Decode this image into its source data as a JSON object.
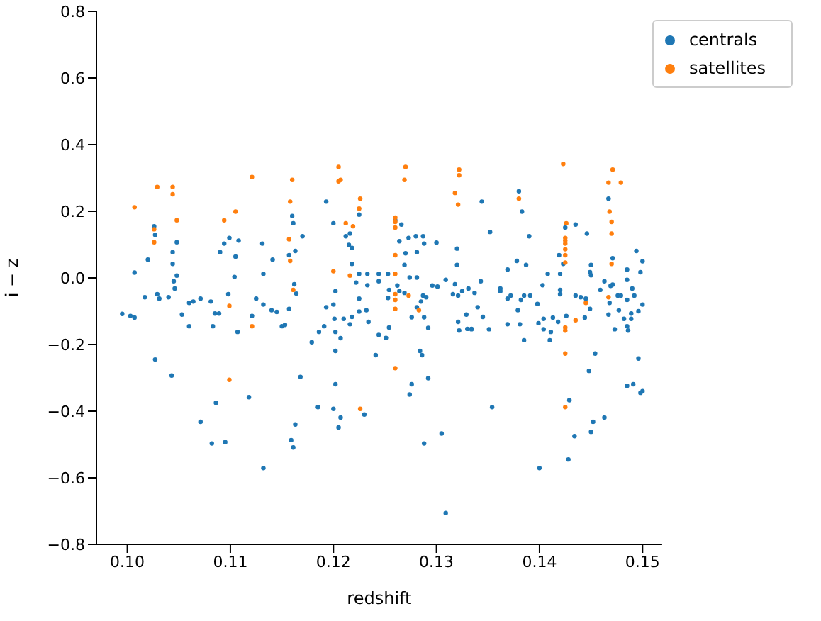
{
  "chart_data": {
    "type": "scatter",
    "xlabel": "redshift",
    "ylabel": "i − z",
    "xlim": [
      0.097,
      0.1519
    ],
    "ylim": [
      -0.8,
      0.8
    ],
    "xticks": [
      {
        "value": 0.1,
        "label": "0.10"
      },
      0.11,
      0.12,
      0.13,
      0.14,
      0.15
    ],
    "yticks": [
      {
        "value": -0.8,
        "label": "−0.8"
      },
      {
        "value": -0.6,
        "label": "−0.6"
      },
      {
        "value": -0.4,
        "label": "−0.4"
      },
      {
        "value": -0.2,
        "label": "−0.2"
      },
      {
        "value": 0,
        "label": "0.0"
      },
      0.2,
      0.4,
      0.6,
      0.8
    ],
    "grid": false,
    "legend": "top right",
    "marker": "circle",
    "series": [
      {
        "name": "centrals",
        "color": "#1f77b4",
        "x": [
          0.1026,
          0.1027,
          0.102,
          0.1007,
          0.1048,
          0.1044,
          0.1044,
          0.1048,
          0.1045,
          0.1046,
          0.1029,
          0.1017,
          0.1031,
          0.104,
          0.1003,
          0.1007,
          0.1053,
          0.106,
          0.1064,
          0.1071,
          0.106,
          0.1081,
          0.1085,
          0.1089,
          0.1083,
          0.109,
          0.1094,
          0.1099,
          0.1108,
          0.1105,
          0.1104,
          0.1098,
          0.1107,
          0.1121,
          0.1125,
          0.1131,
          0.1141,
          0.1132,
          0.1132,
          0.114,
          0.1145,
          0.115,
          0.1153,
          0.1162,
          0.1157,
          0.1157,
          0.1163,
          0.116,
          0.1161,
          0.1164,
          0.1027,
          0.1043,
          0.1086,
          0.1118,
          0.1071,
          0.1082,
          0.1095,
          0.1132,
          0.1163,
          0.1159,
          0.1161,
          0.0995,
          0.1193,
          0.12,
          0.117,
          0.1212,
          0.1216,
          0.1225,
          0.1215,
          0.1218,
          0.1218,
          0.1222,
          0.1225,
          0.1233,
          0.1233,
          0.1244,
          0.1244,
          0.1202,
          0.1193,
          0.12,
          0.1201,
          0.121,
          0.1218,
          0.1225,
          0.1216,
          0.1232,
          0.1234,
          0.1225,
          0.1191,
          0.1186,
          0.1179,
          0.1202,
          0.1207,
          0.1202,
          0.1241,
          0.1244,
          0.1251,
          0.1254,
          0.1253,
          0.1254,
          0.1253,
          0.1262,
          0.1264,
          0.1269,
          0.1269,
          0.127,
          0.1264,
          0.1273,
          0.128,
          0.1287,
          0.1288,
          0.1281,
          0.126,
          0.1266,
          0.1274,
          0.1281,
          0.13,
          0.132,
          0.132,
          0.1309,
          0.1296,
          0.1301,
          0.1285,
          0.1287,
          0.129,
          0.1281,
          0.1276,
          0.1288,
          0.1292,
          0.1318,
          0.1316,
          0.1321,
          0.1325,
          0.1331,
          0.1329,
          0.1321,
          0.1322,
          0.133,
          0.1334,
          0.1284,
          0.1286,
          0.1292,
          0.1276,
          0.1274,
          0.1168,
          0.1202,
          0.1185,
          0.12,
          0.1207,
          0.1205,
          0.123,
          0.1305,
          0.1288,
          0.1309,
          0.138,
          0.1344,
          0.1383,
          0.1352,
          0.139,
          0.1425,
          0.1435,
          0.1446,
          0.1467,
          0.1494,
          0.1419,
          0.1423,
          0.1378,
          0.1387,
          0.1369,
          0.1408,
          0.142,
          0.145,
          0.1449,
          0.145,
          0.1471,
          0.1469,
          0.1471,
          0.1485,
          0.1485,
          0.1498,
          0.149,
          0.1492,
          0.1485,
          0.1463,
          0.1459,
          0.1343,
          0.1337,
          0.1362,
          0.1362,
          0.1369,
          0.1372,
          0.1382,
          0.1385,
          0.1391,
          0.1403,
          0.142,
          0.142,
          0.1435,
          0.144,
          0.1445,
          0.1398,
          0.1379,
          0.134,
          0.1345,
          0.1369,
          0.1381,
          0.1399,
          0.1404,
          0.1413,
          0.1418,
          0.1404,
          0.1411,
          0.1426,
          0.1449,
          0.1444,
          0.1468,
          0.1467,
          0.1476,
          0.1479,
          0.1477,
          0.1482,
          0.1489,
          0.1489,
          0.1496,
          0.1473,
          0.1485,
          0.1486,
          0.1334,
          0.1351,
          0.1385,
          0.141,
          0.1454,
          0.1448,
          0.1496,
          0.1485,
          0.1491,
          0.1498,
          0.1429,
          0.1354,
          0.1463,
          0.1452,
          0.145,
          0.1434,
          0.1428,
          0.14,
          0.15,
          0.15,
          0.15
        ],
        "values": [
          0.155,
          0.129,
          0.055,
          0.016,
          0.107,
          0.077,
          0.042,
          0.007,
          -0.01,
          -0.032,
          -0.049,
          -0.058,
          -0.062,
          -0.058,
          -0.114,
          -0.119,
          -0.11,
          -0.075,
          -0.071,
          -0.062,
          -0.145,
          -0.071,
          -0.107,
          -0.107,
          -0.145,
          0.077,
          0.103,
          0.12,
          0.112,
          0.064,
          0.003,
          -0.049,
          -0.162,
          -0.114,
          -0.062,
          0.103,
          0.055,
          0.012,
          -0.08,
          -0.097,
          -0.102,
          -0.145,
          -0.141,
          -0.019,
          -0.093,
          0.068,
          0.081,
          0.186,
          0.164,
          -0.047,
          -0.245,
          -0.293,
          -0.375,
          -0.358,
          -0.432,
          -0.497,
          -0.493,
          -0.571,
          -0.44,
          -0.487,
          -0.509,
          -0.108,
          0.229,
          0.164,
          0.125,
          0.125,
          0.133,
          0.19,
          0.099,
          0.09,
          0.042,
          -0.014,
          0.012,
          0.012,
          -0.022,
          0.012,
          -0.01,
          -0.04,
          -0.088,
          -0.08,
          -0.123,
          -0.123,
          -0.117,
          -0.101,
          -0.139,
          -0.097,
          -0.132,
          -0.062,
          -0.145,
          -0.162,
          -0.193,
          -0.162,
          -0.181,
          -0.219,
          -0.232,
          -0.171,
          -0.18,
          -0.149,
          -0.06,
          -0.036,
          0.012,
          -0.023,
          -0.04,
          -0.045,
          0.039,
          0.074,
          0.11,
          0.12,
          0.125,
          0.125,
          0.103,
          0.077,
          0.173,
          0.16,
          0.001,
          0.001,
          0.106,
          0.088,
          0.039,
          -0.006,
          -0.023,
          -0.026,
          -0.071,
          -0.053,
          -0.058,
          -0.088,
          -0.118,
          -0.118,
          -0.15,
          -0.019,
          -0.049,
          -0.053,
          -0.04,
          -0.032,
          -0.11,
          -0.132,
          -0.158,
          -0.153,
          -0.153,
          -0.219,
          -0.232,
          -0.301,
          -0.319,
          -0.35,
          -0.297,
          -0.319,
          -0.388,
          -0.393,
          -0.419,
          -0.449,
          -0.41,
          -0.467,
          -0.497,
          -0.706,
          0.26,
          0.229,
          0.199,
          0.138,
          0.125,
          0.151,
          0.16,
          0.133,
          0.238,
          0.081,
          0.068,
          0.042,
          0.051,
          0.039,
          0.025,
          0.012,
          0.012,
          0.039,
          0.017,
          0.008,
          0.059,
          -0.024,
          -0.02,
          0.025,
          -0.006,
          0.017,
          -0.032,
          -0.053,
          -0.066,
          -0.01,
          -0.036,
          -0.01,
          -0.045,
          -0.032,
          -0.04,
          -0.062,
          -0.053,
          -0.066,
          -0.053,
          -0.053,
          -0.022,
          -0.036,
          -0.049,
          -0.053,
          -0.058,
          -0.062,
          -0.078,
          -0.097,
          -0.088,
          -0.117,
          -0.139,
          -0.139,
          -0.136,
          -0.123,
          -0.119,
          -0.132,
          -0.154,
          -0.162,
          -0.114,
          -0.093,
          -0.119,
          -0.075,
          -0.11,
          -0.053,
          -0.053,
          -0.097,
          -0.123,
          -0.123,
          -0.107,
          -0.1,
          -0.154,
          -0.145,
          -0.158,
          -0.154,
          -0.154,
          -0.187,
          -0.187,
          -0.227,
          -0.279,
          -0.242,
          -0.324,
          -0.319,
          -0.345,
          -0.367,
          -0.388,
          -0.419,
          -0.432,
          -0.462,
          -0.475,
          -0.545,
          -0.571,
          -0.08,
          -0.34,
          0.05
        ]
      },
      {
        "name": "satellites",
        "color": "#ff7f0e",
        "x": [
          0.1029,
          0.1044,
          0.1044,
          0.1007,
          0.1026,
          0.1026,
          0.1048,
          0.1121,
          0.116,
          0.1158,
          0.1105,
          0.1094,
          0.1157,
          0.1158,
          0.1161,
          0.1099,
          0.1121,
          0.1099,
          0.1205,
          0.1205,
          0.1207,
          0.127,
          0.1269,
          0.1322,
          0.1322,
          0.1318,
          0.1321,
          0.1226,
          0.1225,
          0.1212,
          0.1219,
          0.126,
          0.126,
          0.126,
          0.126,
          0.126,
          0.126,
          0.126,
          0.126,
          0.1273,
          0.1283,
          0.12,
          0.1216,
          0.126,
          0.1226,
          0.1423,
          0.1471,
          0.1467,
          0.1479,
          0.1468,
          0.147,
          0.147,
          0.147,
          0.138,
          0.1426,
          0.1425,
          0.1425,
          0.1425,
          0.1425,
          0.1425,
          0.1425,
          0.1445,
          0.1467,
          0.1435,
          0.1425,
          0.1425,
          0.1425,
          0.1425
        ],
        "values": [
          0.273,
          0.273,
          0.251,
          0.212,
          0.146,
          0.107,
          0.173,
          0.303,
          0.294,
          0.229,
          0.199,
          0.173,
          0.116,
          0.051,
          -0.036,
          -0.084,
          -0.145,
          -0.306,
          0.333,
          0.29,
          0.294,
          0.333,
          0.294,
          0.325,
          0.308,
          0.255,
          0.22,
          0.238,
          0.208,
          0.164,
          0.155,
          0.181,
          0.168,
          0.151,
          0.068,
          0.012,
          -0.049,
          -0.066,
          -0.093,
          -0.053,
          -0.097,
          0.02,
          0.007,
          -0.271,
          -0.393,
          0.342,
          0.325,
          0.286,
          0.286,
          0.199,
          0.168,
          0.133,
          0.042,
          0.238,
          0.164,
          0.12,
          0.112,
          0.103,
          0.086,
          0.068,
          0.046,
          -0.075,
          -0.058,
          -0.127,
          -0.149,
          -0.158,
          -0.227,
          -0.388
        ]
      }
    ]
  }
}
